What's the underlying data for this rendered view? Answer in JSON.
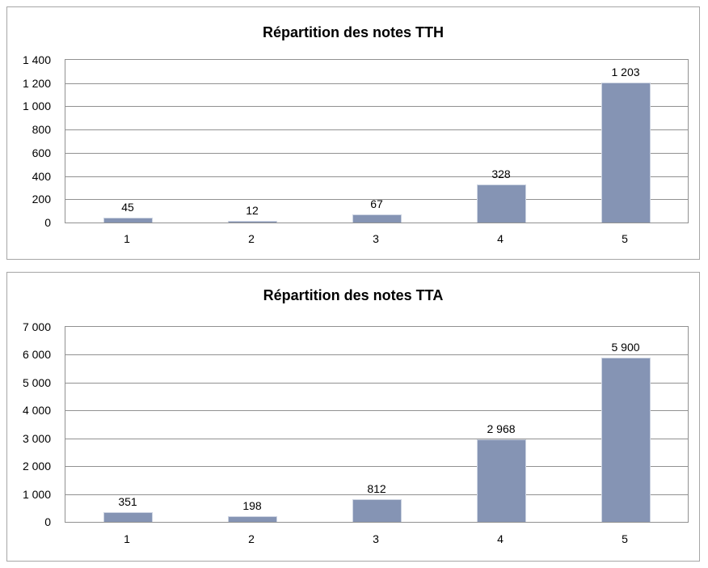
{
  "style": {
    "background": "#FFFFFF",
    "bar_fill": "#8594B4",
    "bar_border": "#CDD4E2",
    "grid_color": "#919191",
    "axis_color": "#919191",
    "panel_border": "#A6A6A6",
    "text_color": "#000000"
  },
  "chart_data": [
    {
      "type": "bar",
      "title": "Répartition des notes TTH",
      "categories": [
        "1",
        "2",
        "3",
        "4",
        "5"
      ],
      "values": [
        45,
        12,
        67,
        328,
        1203
      ],
      "data_labels": [
        "45",
        "12",
        "67",
        "328",
        "1 203"
      ],
      "xlabel": "",
      "ylabel": "",
      "ylim": [
        0,
        1400
      ],
      "y_ticks": [
        0,
        200,
        400,
        600,
        800,
        1000,
        1200,
        1400
      ],
      "y_tick_labels": [
        "0",
        "200",
        "400",
        "600",
        "800",
        "1 000",
        "1 200",
        "1 400"
      ],
      "grid": true,
      "legend": "none"
    },
    {
      "type": "bar",
      "title": "Répartition des notes TTA",
      "categories": [
        "1",
        "2",
        "3",
        "4",
        "5"
      ],
      "values": [
        351,
        198,
        812,
        2968,
        5900
      ],
      "data_labels": [
        "351",
        "198",
        "812",
        "2 968",
        "5 900"
      ],
      "xlabel": "",
      "ylabel": "",
      "ylim": [
        0,
        7000
      ],
      "y_ticks": [
        0,
        1000,
        2000,
        3000,
        4000,
        5000,
        6000,
        7000
      ],
      "y_tick_labels": [
        "0",
        "1 000",
        "2 000",
        "3 000",
        "4 000",
        "5 000",
        "6 000",
        "7 000"
      ],
      "grid": true,
      "legend": "none"
    }
  ]
}
